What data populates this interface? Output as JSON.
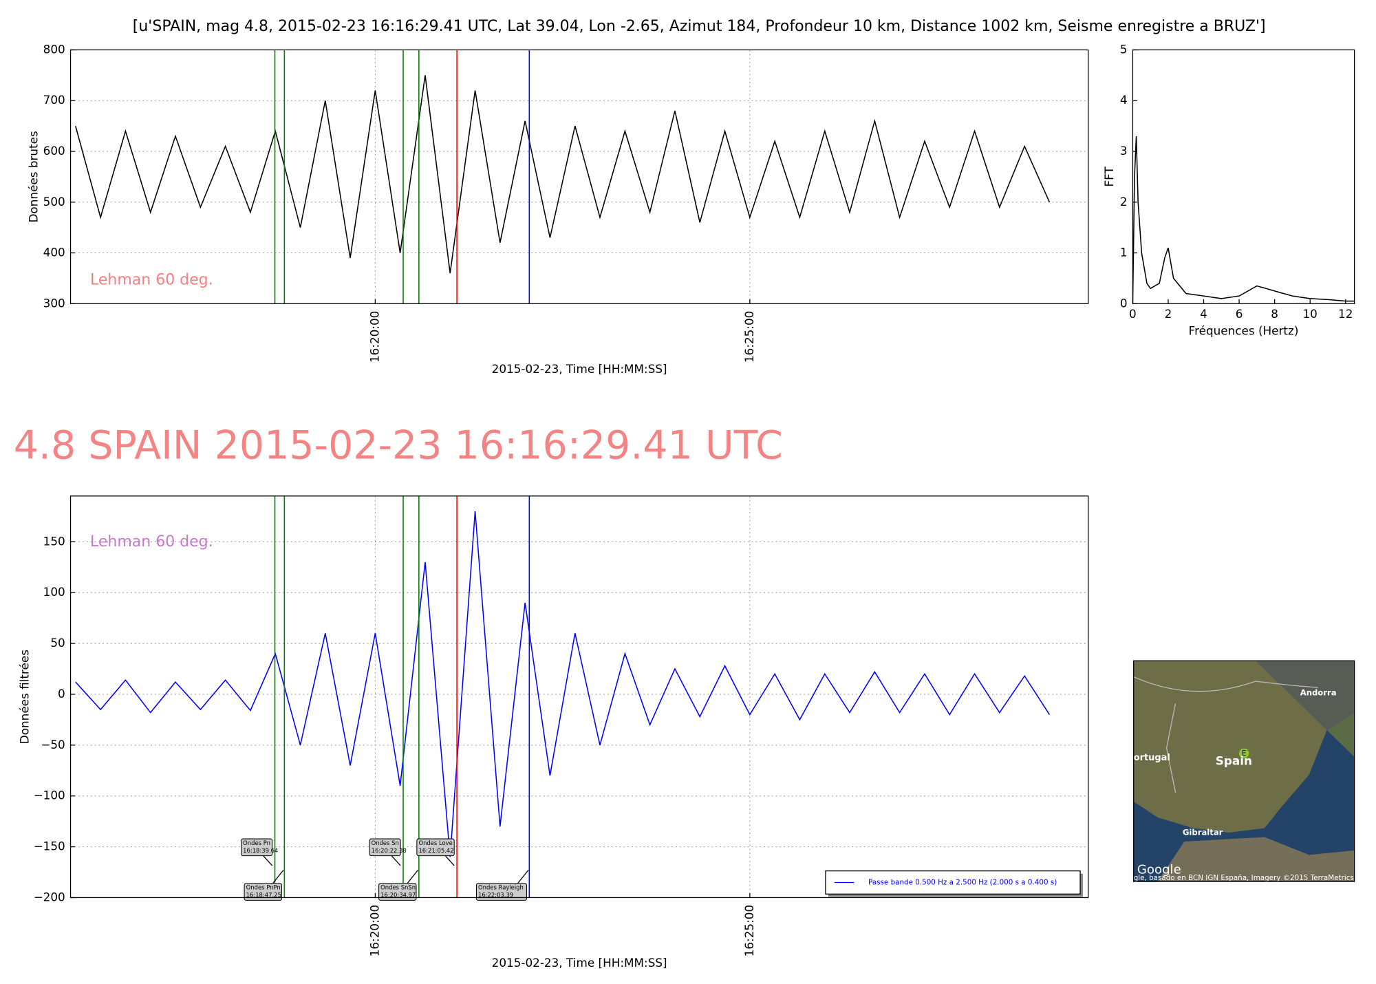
{
  "chart_data": [
    {
      "type": "line",
      "title": "[u'SPAIN, mag 4.8, 2015-02-23 16:16:29.41 UTC, Lat 39.04, Lon -2.65, Azimut 184, Profondeur 10 km, Distance  1002 km, Seisme enregistre a BRUZ']",
      "xlabel": "2015-02-23, Time [HH:MM:SS]",
      "ylabel": "Données brutes",
      "x": [
        "16:16:00",
        "16:16:20",
        "16:16:40",
        "16:17:00",
        "16:17:20",
        "16:17:40",
        "16:18:00",
        "16:18:20",
        "16:18:40",
        "16:19:00",
        "16:19:20",
        "16:19:40",
        "16:20:00",
        "16:20:20",
        "16:20:40",
        "16:21:00",
        "16:21:20",
        "16:21:40",
        "16:22:00",
        "16:22:20",
        "16:22:40",
        "16:23:00",
        "16:23:20",
        "16:23:40",
        "16:24:00",
        "16:24:20",
        "16:24:40",
        "16:25:00",
        "16:25:20",
        "16:25:40",
        "16:26:00",
        "16:26:20",
        "16:26:40",
        "16:27:00",
        "16:27:20",
        "16:27:40",
        "16:28:00",
        "16:28:20",
        "16:28:40",
        "16:29:00"
      ],
      "series": [
        {
          "color": "#000000",
          "values": [
            650,
            470,
            640,
            480,
            630,
            490,
            610,
            480,
            640,
            450,
            700,
            390,
            720,
            400,
            750,
            360,
            720,
            420,
            660,
            430,
            650,
            470,
            640,
            480,
            680,
            460,
            640,
            470,
            620,
            470,
            640,
            480,
            660,
            470,
            620,
            490,
            640,
            490,
            610,
            500
          ]
        }
      ],
      "xlim": [
        "16:15:56",
        "16:29:31"
      ],
      "ylim": [
        300,
        800
      ],
      "xticks": [
        "16:20:00",
        "16:25:00"
      ],
      "yticks": [
        300,
        400,
        500,
        600,
        700,
        800
      ],
      "grid": true,
      "annotation": "Lehman 60 deg.",
      "annotation_color": "#f48080",
      "vlines": [
        {
          "time": "16:18:39.64",
          "color": "#008000"
        },
        {
          "time": "16:18:47.25",
          "color": "#008000"
        },
        {
          "time": "16:20:22.38",
          "color": "#008000"
        },
        {
          "time": "16:20:34.97",
          "color": "#008000"
        },
        {
          "time": "16:21:05.42",
          "color": "#ff0000"
        },
        {
          "time": "16:22:03.39",
          "color": "#0000ff"
        }
      ]
    },
    {
      "type": "line",
      "xlabel": "Fréquences (Hertz)",
      "ylabel": "FFT",
      "x": [
        0,
        0.1,
        0.2,
        0.3,
        0.5,
        0.8,
        1,
        1.5,
        1.8,
        2,
        2.3,
        3,
        4,
        5,
        6,
        7,
        7.5,
        8,
        9,
        10,
        11,
        12,
        12.5
      ],
      "series": [
        {
          "color": "#000000",
          "values": [
            0,
            2.5,
            3.3,
            2,
            1,
            0.4,
            0.3,
            0.4,
            0.9,
            1.1,
            0.5,
            0.2,
            0.15,
            0.1,
            0.15,
            0.35,
            0.3,
            0.25,
            0.15,
            0.1,
            0.08,
            0.05,
            0.05
          ]
        }
      ],
      "xlim": [
        0,
        12.5
      ],
      "ylim": [
        0,
        5
      ],
      "xticks": [
        0,
        2,
        4,
        6,
        8,
        10,
        12
      ],
      "yticks": [
        0,
        1,
        2,
        3,
        4,
        5
      ],
      "grid": false
    },
    {
      "type": "line",
      "title": "4.8 SPAIN 2015-02-23 16:16:29.41 UTC",
      "xlabel": "2015-02-23, Time [HH:MM:SS]",
      "ylabel": "Données filtrées",
      "x": [
        "16:16:00",
        "16:16:20",
        "16:16:40",
        "16:17:00",
        "16:17:20",
        "16:17:40",
        "16:18:00",
        "16:18:20",
        "16:18:40",
        "16:19:00",
        "16:19:20",
        "16:19:40",
        "16:20:00",
        "16:20:20",
        "16:20:40",
        "16:21:00",
        "16:21:20",
        "16:21:40",
        "16:22:00",
        "16:22:20",
        "16:22:40",
        "16:23:00",
        "16:23:20",
        "16:23:40",
        "16:24:00",
        "16:24:20",
        "16:24:40",
        "16:25:00",
        "16:25:20",
        "16:25:40",
        "16:26:00",
        "16:26:20",
        "16:26:40",
        "16:27:00",
        "16:27:20",
        "16:27:40",
        "16:28:00",
        "16:28:20",
        "16:28:40",
        "16:29:00"
      ],
      "series": [
        {
          "name": "Passe bande 0.500 Hz a 2.500 Hz (2.000 s a 0.400 s)",
          "color": "#0000ff",
          "values": [
            12,
            -15,
            14,
            -18,
            12,
            -15,
            14,
            -16,
            40,
            -50,
            60,
            -70,
            60,
            -90,
            130,
            -160,
            180,
            -130,
            90,
            -80,
            60,
            -50,
            40,
            -30,
            25,
            -22,
            28,
            -20,
            20,
            -25,
            20,
            -18,
            22,
            -18,
            20,
            -20,
            20,
            -18,
            18,
            -20
          ]
        }
      ],
      "xlim": [
        "16:15:56",
        "16:29:31"
      ],
      "ylim": [
        -200,
        195
      ],
      "xticks": [
        "16:20:00",
        "16:25:00"
      ],
      "yticks": [
        {
          "value": -200,
          "label": "−200"
        },
        {
          "value": -150,
          "label": "−150"
        },
        {
          "value": -100,
          "label": "−100"
        },
        {
          "value": -50,
          "label": "−50"
        },
        0,
        50,
        100,
        150
      ],
      "grid": true,
      "annotation": "Lehman 60 deg.",
      "annotation_color": "#c878c8",
      "legend": "lower right",
      "markers": [
        {
          "label": "Ondes Pn",
          "time": "16:18:39.64",
          "color": "#008000"
        },
        {
          "label": "Ondes PnPn",
          "time": "16:18:47.25",
          "color": "#008000"
        },
        {
          "label": "Ondes Sn",
          "time": "16:20:22.38",
          "color": "#008000"
        },
        {
          "label": "Ondes SnSn",
          "time": "16:20:34.97",
          "color": "#008000"
        },
        {
          "label": "Ondes Love",
          "time": "16:21:05.42",
          "color": "#ff0000"
        },
        {
          "label": "Ondes Rayleigh",
          "time": "16:22:03.39",
          "color": "#0000ff"
        }
      ]
    }
  ],
  "map": {
    "places": [
      "Andorra",
      "ortugal",
      "Spain",
      "Gibraltar"
    ],
    "marker": "E",
    "logo": "Google",
    "attribution": "gle, basado en BCN IGN España, Imagery ©2015 TerraMetrics"
  }
}
